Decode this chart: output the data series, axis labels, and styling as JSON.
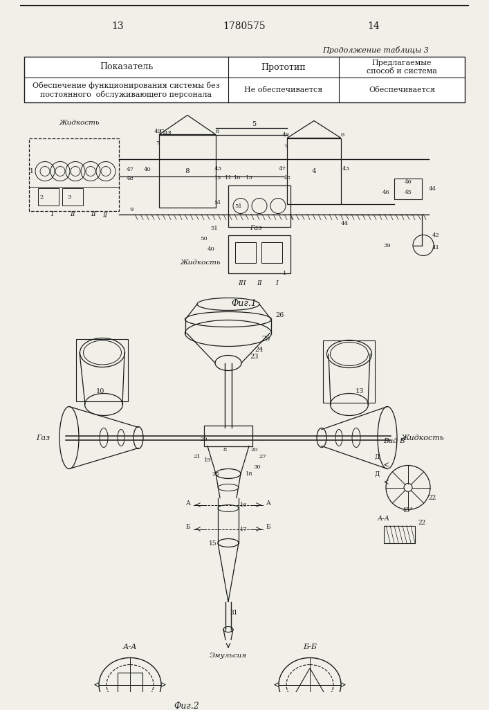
{
  "page_number_left": "13",
  "patent_number": "1780575",
  "page_number_right": "14",
  "table_continuation": "Продолжение таблицы 3",
  "table_header": [
    "Показатель",
    "Прототип",
    "Предлагаемые\nспособ и система"
  ],
  "table_row": [
    "Обеспечение функционирования системы без\nпостоянного  обслуживающего персонала",
    "Не обеспечивается",
    "Обеспечивается"
  ],
  "fig1_label": "Фиг.1",
  "fig2_label": "Фиг.2",
  "background_color": "#f0efe8",
  "line_color": "#1a1a1a"
}
